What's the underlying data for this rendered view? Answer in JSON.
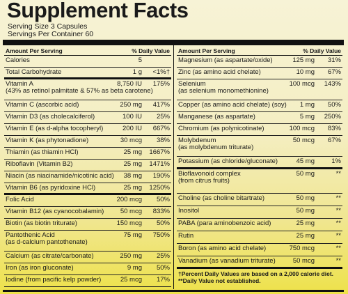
{
  "title": "Supplement Facts",
  "serving_size": "Serving Size 3 Capsules",
  "servings_per_container": "Servings Per Container 60",
  "left_header": {
    "amount": "Amount Per Serving",
    "dv": "% Daily Value"
  },
  "right_header": {
    "amount": "Amount Per Serving",
    "dv": "% Daily Value"
  },
  "left_rows": [
    {
      "name": "Calories",
      "amount": "5",
      "dv": ""
    },
    {
      "name": "Total Carbohydrate",
      "amount": "1 g",
      "dv": "<1%†"
    },
    {
      "name": "Vitamin A",
      "name2": "(43% as retinol palmitate & 57% as beta carotene)",
      "amount": "8,750 IU",
      "dv": "175%"
    },
    {
      "name": "Vitamin C (ascorbic acid)",
      "amount": "250 mg",
      "dv": "417%"
    },
    {
      "name": "Vitamin D3 (as cholecalciferol)",
      "amount": "100 IU",
      "dv": "25%"
    },
    {
      "name": "Vitamin E (as d-alpha tocopheryl)",
      "amount": "200 IU",
      "dv": "667%"
    },
    {
      "name": "Vitamin K (as phytonadione)",
      "amount": "30 mcg",
      "dv": "38%"
    },
    {
      "name": "Thiamin (as thiamin HCl)",
      "amount": "25 mg",
      "dv": "1667%"
    },
    {
      "name": "Riboflavin (Vitamin B2)",
      "amount": "25 mg",
      "dv": "1471%"
    },
    {
      "name": "Niacin (as niacinamide/nicotinic acid)",
      "amount": "38 mg",
      "dv": "190%"
    },
    {
      "name": "Vitamin B6 (as pyridoxine HCl)",
      "amount": "25 mg",
      "dv": "1250%"
    },
    {
      "name": "Folic Acid",
      "amount": "200 mcg",
      "dv": "50%"
    },
    {
      "name": "Vitamin B12 (as cyanocobalamin)",
      "amount": "50 mcg",
      "dv": "833%"
    },
    {
      "name": "Biotin (as biotin triturate)",
      "amount": "150 mcg",
      "dv": "50%"
    },
    {
      "name": "Pantothenic Acid",
      "name2": "(as d-calcium pantothenate)",
      "amount": "75 mg",
      "dv": "750%"
    },
    {
      "name": "Calcium (as citrate/carbonate)",
      "amount": "250 mg",
      "dv": "25%"
    },
    {
      "name": "Iron (as iron gluconate)",
      "amount": "9 mg",
      "dv": "50%"
    },
    {
      "name": "Iodine (from pacific kelp powder)",
      "amount": "25 mcg",
      "dv": "17%"
    }
  ],
  "right_rows": [
    {
      "name": "Magnesium (as aspartate/oxide)",
      "amount": "125 mg",
      "dv": "31%"
    },
    {
      "name": "Zinc (as amino acid chelate)",
      "amount": "10 mg",
      "dv": "67%"
    },
    {
      "name": "Selenium",
      "name2": "(as selenium monomethionine)",
      "amount": "100 mcg",
      "dv": "143%"
    },
    {
      "name": "Copper (as amino acid chelate) (soy)",
      "amount": "1 mg",
      "dv": "50%"
    },
    {
      "name": "Manganese (as aspartate)",
      "amount": "5 mg",
      "dv": "250%"
    },
    {
      "name": "Chromium (as polynicotinate)",
      "amount": "100 mcg",
      "dv": "83%"
    },
    {
      "name": "Molybdenum",
      "name2": "(as molybdenum triturate)",
      "amount": "50 mcg",
      "dv": "67%"
    },
    {
      "name": "Potassium (as chloride/gluconate)",
      "amount": "45 mg",
      "dv": "1%"
    },
    {
      "name": "Bioflavonoid complex",
      "name2": "(from citrus fruits)",
      "amount": "50 mg",
      "dv": "**"
    },
    {
      "name": "Choline (as choline bitartrate)",
      "amount": "50 mg",
      "dv": "**"
    },
    {
      "name": "Inositol",
      "amount": "50 mg",
      "dv": "**"
    },
    {
      "name": "PABA (para aminobenzoic acid)",
      "amount": "25 mg",
      "dv": "**"
    },
    {
      "name": "Rutin",
      "amount": "25 mg",
      "dv": "**"
    },
    {
      "name": "Boron (as amino acid chelate)",
      "amount": "750 mcg",
      "dv": "**"
    },
    {
      "name": "Vanadium (as vanadium triturate)",
      "amount": "50 mcg",
      "dv": "**"
    }
  ],
  "footnote_1": "†Percent Daily Values are based on a 2,000 calorie diet.",
  "footnote_2": "**Daily Value not established."
}
